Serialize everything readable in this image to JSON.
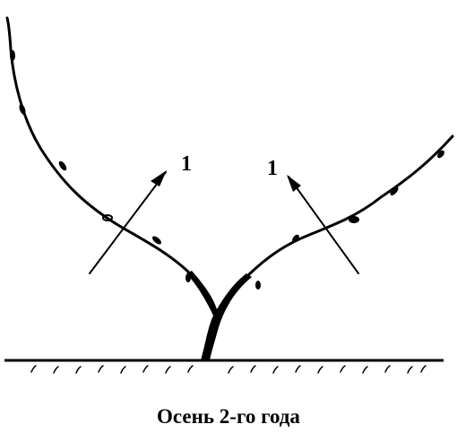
{
  "annotations": [
    "1",
    "1"
  ],
  "caption": "Осень 2-го года"
}
